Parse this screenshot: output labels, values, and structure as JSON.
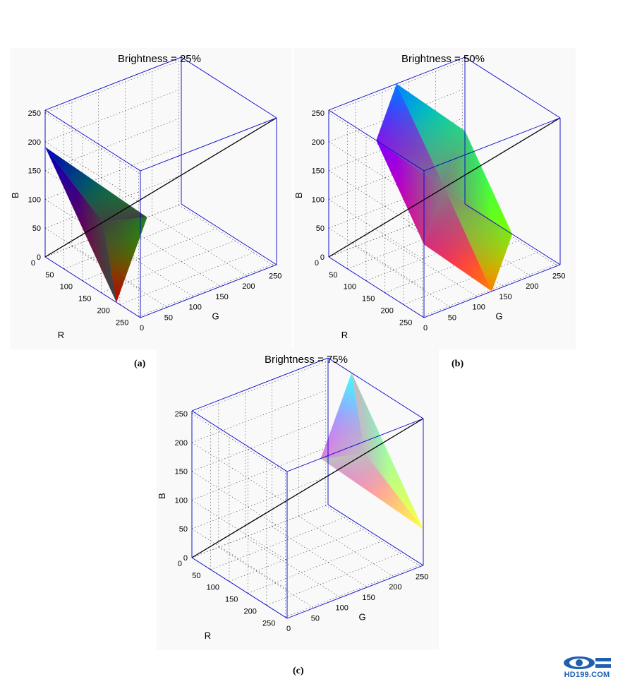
{
  "captions": [
    "(a)",
    "(b)",
    "(c)"
  ],
  "watermark": "HD199.COM",
  "colors": {
    "box": "#0000cc",
    "diagonal": "#000000",
    "grid": "#444444"
  },
  "chart_data": [
    {
      "type": "surface3d",
      "title": "Brightness = 25%",
      "xlabel": "R",
      "ylabel": "G",
      "zlabel": "B",
      "xlim": [
        0,
        255
      ],
      "ylim": [
        0,
        255
      ],
      "zlim": [
        0,
        255
      ],
      "xticks": [
        0,
        50,
        100,
        150,
        200,
        250
      ],
      "yticks": [
        0,
        50,
        100,
        150,
        200,
        250
      ],
      "zticks": [
        0,
        50,
        100,
        150,
        200,
        250
      ],
      "grid": true,
      "diagonal_line": {
        "from": [
          0,
          0,
          0
        ],
        "to": [
          255,
          255,
          255
        ]
      },
      "surface_vertices": [
        [
          0,
          0,
          191
        ],
        [
          0,
          191,
          0
        ],
        [
          191,
          0,
          0
        ]
      ]
    },
    {
      "type": "surface3d",
      "title": "Brightness = 50%",
      "xlabel": "R",
      "ylabel": "G",
      "zlabel": "B",
      "xlim": [
        0,
        255
      ],
      "ylim": [
        0,
        255
      ],
      "zlim": [
        0,
        255
      ],
      "xticks": [
        0,
        50,
        100,
        150,
        200,
        250
      ],
      "yticks": [
        0,
        50,
        100,
        150,
        200,
        250
      ],
      "zticks": [
        0,
        50,
        100,
        150,
        200,
        250
      ],
      "grid": true,
      "diagonal_line": {
        "from": [
          0,
          0,
          0
        ],
        "to": [
          255,
          255,
          255
        ]
      },
      "surface_vertices": [
        [
          0,
          127,
          255
        ],
        [
          0,
          255,
          127
        ],
        [
          127,
          255,
          0
        ],
        [
          255,
          127,
          0
        ],
        [
          255,
          0,
          127
        ],
        [
          127,
          0,
          255
        ]
      ]
    },
    {
      "type": "surface3d",
      "title": "Brightness = 75%",
      "xlabel": "R",
      "ylabel": "G",
      "zlabel": "B",
      "xlim": [
        0,
        255
      ],
      "ylim": [
        0,
        255
      ],
      "zlim": [
        0,
        255
      ],
      "xticks": [
        0,
        50,
        100,
        150,
        200,
        250
      ],
      "yticks": [
        0,
        50,
        100,
        150,
        200,
        250
      ],
      "zticks": [
        0,
        50,
        100,
        150,
        200,
        250
      ],
      "grid": true,
      "diagonal_line": {
        "from": [
          0,
          0,
          0
        ],
        "to": [
          255,
          255,
          255
        ]
      },
      "surface_vertices": [
        [
          63,
          255,
          255
        ],
        [
          255,
          63,
          255
        ],
        [
          255,
          255,
          63
        ]
      ]
    }
  ]
}
